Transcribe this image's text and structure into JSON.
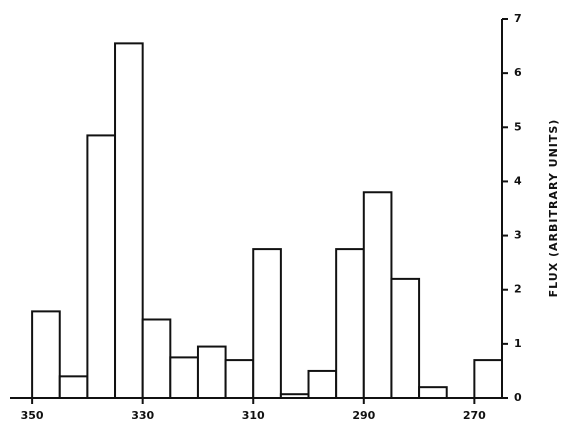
{
  "chart_data": {
    "type": "histogram",
    "y_label": "FLUX (ARBITRARY UNITS)",
    "bins": [
      350,
      345,
      340,
      335,
      330,
      325,
      320,
      315,
      310,
      305,
      300,
      295,
      290,
      285,
      280,
      275,
      270,
      265
    ],
    "counts": [
      1.6,
      0.4,
      4.85,
      6.55,
      1.45,
      0.75,
      0.95,
      0.7,
      2.75,
      0.07,
      0.5,
      2.75,
      3.8,
      2.2,
      0.2,
      0,
      0.7
    ],
    "color": "#ffffff",
    "xlim": [
      354,
      265
    ],
    "xticks": [
      350,
      330,
      310,
      290,
      270
    ],
    "ylim": [
      0,
      7
    ],
    "yticks": [
      0,
      1,
      2,
      3,
      4,
      5,
      6,
      7
    ],
    "grid": false,
    "y_axis_side": "right"
  }
}
